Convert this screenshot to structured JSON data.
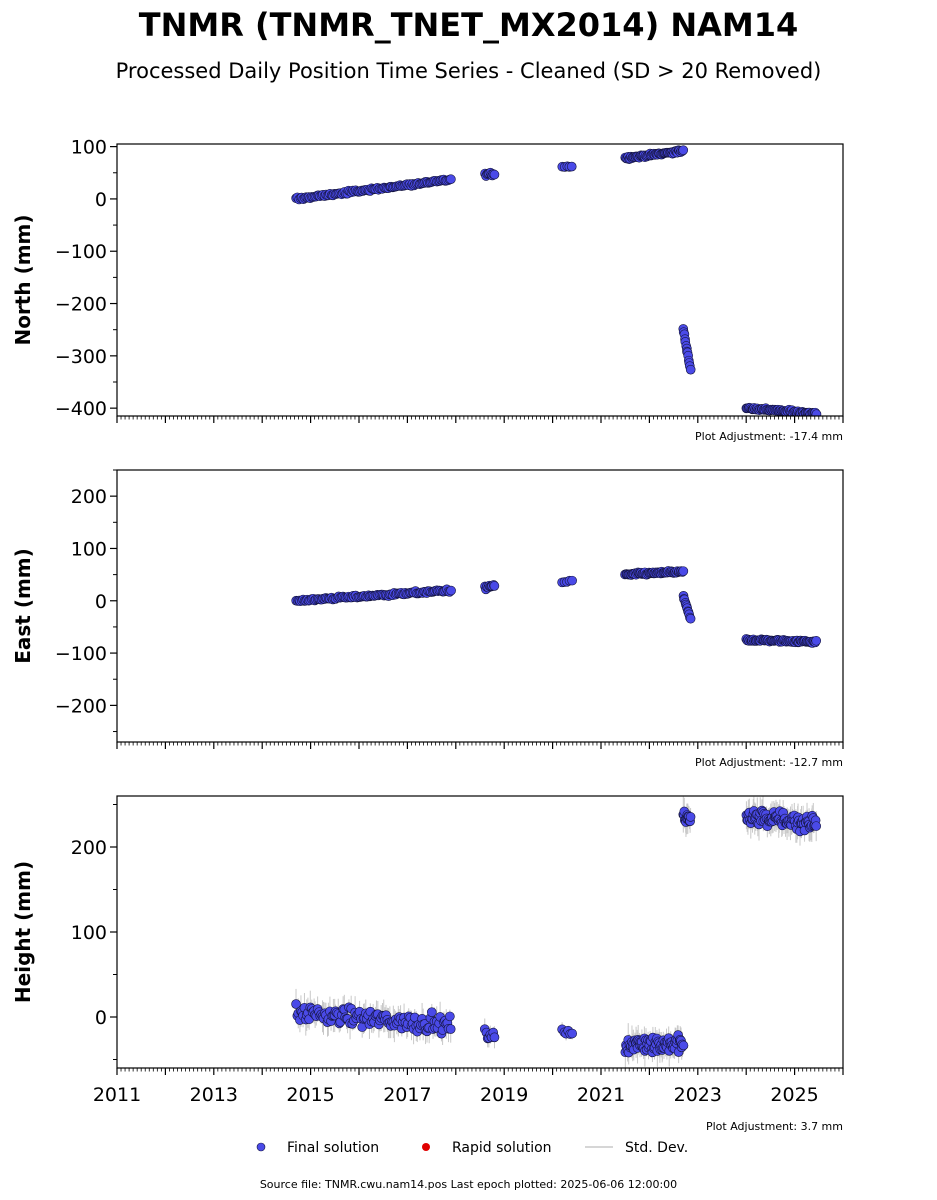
{
  "header": {
    "title": "TNMR (TNMR_TNET_MX2014) NAM14",
    "subtitle": "Processed Daily Position Time Series - Cleaned (SD > 20 Removed)"
  },
  "footer": {
    "source": "Source file: TNMR.cwu.nam14.pos  Last epoch plotted: 2025-06-06 12:00:00"
  },
  "legend": {
    "final": "Final solution",
    "rapid": "Rapid solution",
    "std": "Std. Dev."
  },
  "colors": {
    "final": "#4a4ae8",
    "final_edge": "#14143c",
    "rapid": "#e00000",
    "std": "#c8c8c8"
  },
  "chart_data": [
    {
      "type": "scatter",
      "ylabel": "North (mm)",
      "adjustment": "Plot Adjustment: -17.4 mm",
      "xlim": [
        2011,
        2026
      ],
      "ylim": [
        -415,
        105
      ],
      "yticks": [
        100,
        0,
        -100,
        -200,
        -300,
        -400
      ],
      "ytick_labels": [
        "100",
        "0",
        "−100",
        "−200",
        "−300",
        "−400"
      ],
      "segments": [
        {
          "start": 2014.7,
          "end": 2017.9,
          "y0": 0,
          "y1": 37,
          "noise": 2.5,
          "n": 110
        },
        {
          "start": 2018.6,
          "end": 2018.8,
          "y0": 47,
          "y1": 48,
          "noise": 3,
          "n": 10
        },
        {
          "start": 2020.2,
          "end": 2020.4,
          "y0": 62,
          "y1": 62,
          "noise": 1.5,
          "n": 5
        },
        {
          "start": 2021.5,
          "end": 2022.7,
          "y0": 78,
          "y1": 92,
          "noise": 2.5,
          "n": 60
        },
        {
          "start": 2022.7,
          "end": 2022.85,
          "y0": -250,
          "y1": -325,
          "noise": 3,
          "n": 14
        },
        {
          "start": 2024.0,
          "end": 2025.45,
          "y0": -400,
          "y1": -410,
          "noise": 2.5,
          "n": 70
        }
      ]
    },
    {
      "type": "scatter",
      "ylabel": "East (mm)",
      "adjustment": "Plot Adjustment: -12.7 mm",
      "xlim": [
        2011,
        2026
      ],
      "ylim": [
        -270,
        250
      ],
      "yticks": [
        200,
        100,
        0,
        -100,
        -200
      ],
      "ytick_labels": [
        "200",
        "100",
        "0",
        "−100",
        "−200"
      ],
      "segments": [
        {
          "start": 2014.7,
          "end": 2017.9,
          "y0": 0,
          "y1": 20,
          "noise": 2.5,
          "n": 110
        },
        {
          "start": 2018.6,
          "end": 2018.8,
          "y0": 25,
          "y1": 28,
          "noise": 4,
          "n": 10
        },
        {
          "start": 2020.2,
          "end": 2020.4,
          "y0": 35,
          "y1": 37,
          "noise": 2,
          "n": 5
        },
        {
          "start": 2021.5,
          "end": 2022.7,
          "y0": 50,
          "y1": 56,
          "noise": 2.5,
          "n": 60
        },
        {
          "start": 2022.7,
          "end": 2022.85,
          "y0": 8,
          "y1": -35,
          "noise": 2,
          "n": 12
        },
        {
          "start": 2024.0,
          "end": 2025.45,
          "y0": -75,
          "y1": -78,
          "noise": 2.5,
          "n": 70
        }
      ]
    },
    {
      "type": "scatter",
      "ylabel": "Height (mm)",
      "adjustment": "Plot Adjustment: 3.7 mm",
      "xlim": [
        2011,
        2026
      ],
      "ylim": [
        -60,
        260
      ],
      "yticks": [
        200,
        100,
        0
      ],
      "ytick_labels": [
        "200",
        "100",
        "0"
      ],
      "xticks": [
        2011,
        2013,
        2015,
        2017,
        2019,
        2021,
        2023,
        2025
      ],
      "xtick_labels": [
        "2011",
        "2013",
        "2015",
        "2017",
        "2019",
        "2021",
        "2023",
        "2025"
      ],
      "segments": [
        {
          "start": 2014.7,
          "end": 2017.9,
          "y0": 5,
          "y1": -10,
          "noise": 9,
          "n": 130
        },
        {
          "start": 2018.6,
          "end": 2018.8,
          "y0": -20,
          "y1": -20,
          "noise": 6,
          "n": 8
        },
        {
          "start": 2020.2,
          "end": 2020.4,
          "y0": -20,
          "y1": -20,
          "noise": 5,
          "n": 6
        },
        {
          "start": 2021.5,
          "end": 2022.7,
          "y0": -32,
          "y1": -32,
          "noise": 9,
          "n": 80
        },
        {
          "start": 2022.7,
          "end": 2022.85,
          "y0": 232,
          "y1": 236,
          "noise": 10,
          "n": 14
        },
        {
          "start": 2024.0,
          "end": 2025.45,
          "y0": 236,
          "y1": 228,
          "noise": 9,
          "n": 90
        }
      ]
    }
  ]
}
